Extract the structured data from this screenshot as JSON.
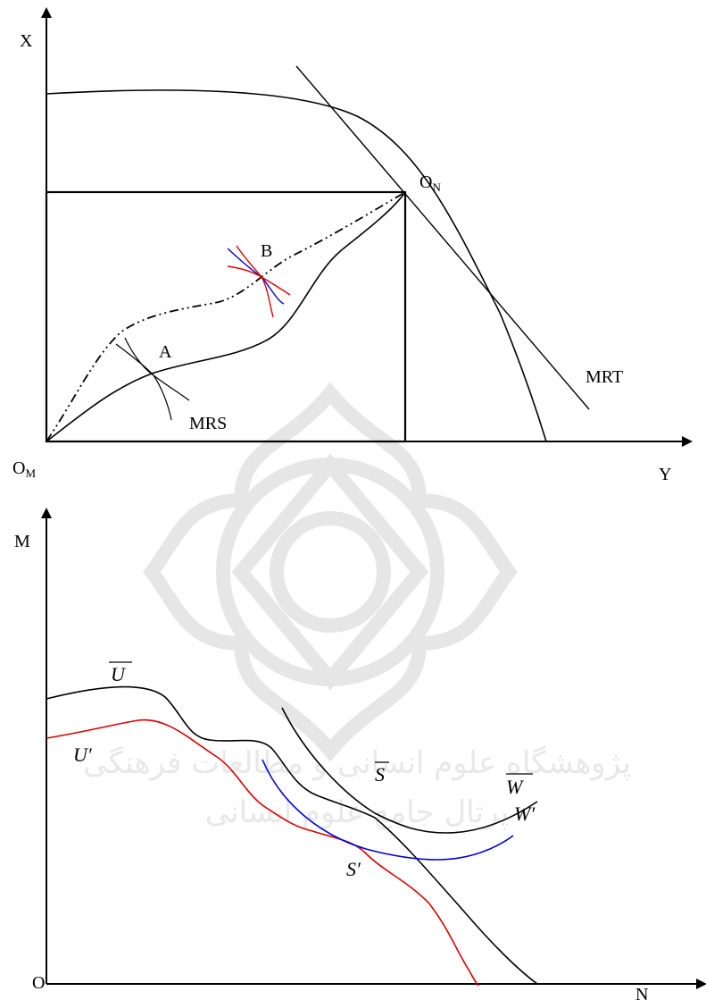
{
  "top_diagram": {
    "y_axis_label": "X",
    "x_axis_label": "Y",
    "origin_label": "O",
    "origin_subscript": "M",
    "corner_label": "O",
    "corner_subscript": "N",
    "point_a": "A",
    "point_b": "B",
    "mrs_label": "MRS",
    "mrt_label": "MRT",
    "colors": {
      "tangent_red": "#e00000",
      "tangent_blue": "#0000e0"
    }
  },
  "bottom_diagram": {
    "y_axis_label": "M",
    "x_axis_label": "N",
    "origin_label": "O",
    "u_bar_label": "U",
    "u_prime_label": "U′",
    "s_bar_label": "S",
    "s_prime_label": "S′",
    "w_bar_label": "W",
    "w_prime_label": "W′",
    "colors": {
      "u_prime_curve": "#e00000",
      "w_prime_curve": "#0000e0"
    }
  },
  "watermark": {
    "line1": "پژوهشگاه علوم انسانی و مطالعات فرهنگی",
    "line2": "پرتال جامع علوم انسانی"
  }
}
